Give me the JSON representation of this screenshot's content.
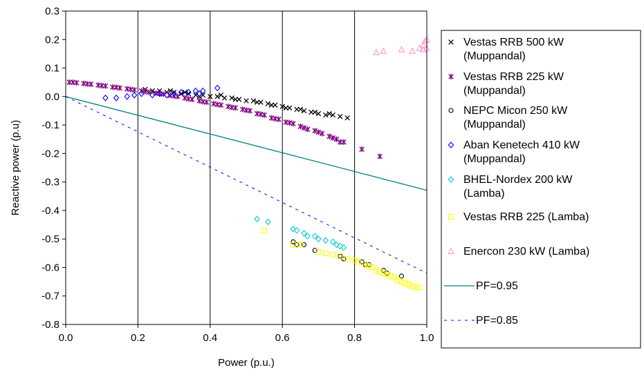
{
  "chart_data": {
    "type": "scatter",
    "xlabel": "Power (p.u.)",
    "ylabel": "Reactive power (p.u)",
    "xlim": [
      0,
      1.0
    ],
    "ylim": [
      -0.8,
      0.3
    ],
    "x_ticks": [
      "0.0",
      "0.2",
      "0.4",
      "0.6",
      "0.8",
      "1.0"
    ],
    "y_ticks": [
      "0.3",
      "0.2",
      "0.1",
      "0.0",
      "-0.1",
      "-0.2",
      "-0.3",
      "-0.4",
      "-0.5",
      "-0.6",
      "-0.7",
      "-0.8"
    ],
    "grid": "vertical",
    "legend_position": "right",
    "series": [
      {
        "name": [
          "Vestas RRB 500 kW",
          "(Muppandal)"
        ],
        "marker": "x",
        "color": "#000000",
        "points": [
          [
            0.22,
            0.025
          ],
          [
            0.24,
            0.02
          ],
          [
            0.26,
            0.02
          ],
          [
            0.28,
            0.015
          ],
          [
            0.3,
            0.015
          ],
          [
            0.32,
            0.01
          ],
          [
            0.34,
            0.01
          ],
          [
            0.36,
            0.005
          ],
          [
            0.38,
            0.005
          ],
          [
            0.4,
            0.0
          ],
          [
            0.42,
            0.0
          ],
          [
            0.44,
            -0.005
          ],
          [
            0.46,
            -0.005
          ],
          [
            0.48,
            -0.01
          ],
          [
            0.5,
            -0.015
          ],
          [
            0.52,
            -0.015
          ],
          [
            0.54,
            -0.02
          ],
          [
            0.56,
            -0.025
          ],
          [
            0.58,
            -0.03
          ],
          [
            0.6,
            -0.035
          ],
          [
            0.62,
            -0.04
          ],
          [
            0.64,
            -0.045
          ],
          [
            0.66,
            -0.05
          ],
          [
            0.68,
            -0.055
          ],
          [
            0.7,
            -0.06
          ],
          [
            0.72,
            -0.065
          ],
          [
            0.74,
            -0.065
          ],
          [
            0.76,
            -0.07
          ],
          [
            0.78,
            -0.075
          ],
          [
            0.29,
            0.02
          ],
          [
            0.33,
            0.015
          ],
          [
            0.37,
            0.0
          ],
          [
            0.43,
            0.005
          ],
          [
            0.47,
            -0.01
          ],
          [
            0.53,
            -0.02
          ],
          [
            0.57,
            -0.03
          ],
          [
            0.61,
            -0.04
          ],
          [
            0.65,
            -0.045
          ],
          [
            0.69,
            -0.055
          ],
          [
            0.73,
            -0.06
          ]
        ]
      },
      {
        "name": [
          "Vestas RRB 225 kW",
          "(Muppandal)"
        ],
        "marker": "asterisk",
        "color": "#800080",
        "points": [
          [
            0.01,
            0.05
          ],
          [
            0.03,
            0.048
          ],
          [
            0.05,
            0.046
          ],
          [
            0.07,
            0.043
          ],
          [
            0.09,
            0.04
          ],
          [
            0.11,
            0.037
          ],
          [
            0.13,
            0.033
          ],
          [
            0.15,
            0.03
          ],
          [
            0.17,
            0.027
          ],
          [
            0.19,
            0.023
          ],
          [
            0.21,
            0.02
          ],
          [
            0.23,
            0.015
          ],
          [
            0.25,
            0.012
          ],
          [
            0.27,
            0.008
          ],
          [
            0.29,
            0.004
          ],
          [
            0.31,
            0.0
          ],
          [
            0.33,
            -0.005
          ],
          [
            0.35,
            -0.01
          ],
          [
            0.37,
            -0.015
          ],
          [
            0.39,
            -0.02
          ],
          [
            0.41,
            -0.025
          ],
          [
            0.43,
            -0.03
          ],
          [
            0.45,
            -0.035
          ],
          [
            0.47,
            -0.04
          ],
          [
            0.49,
            -0.045
          ],
          [
            0.51,
            -0.05
          ],
          [
            0.53,
            -0.06
          ],
          [
            0.55,
            -0.065
          ],
          [
            0.57,
            -0.075
          ],
          [
            0.59,
            -0.08
          ],
          [
            0.61,
            -0.09
          ],
          [
            0.63,
            -0.095
          ],
          [
            0.65,
            -0.105
          ],
          [
            0.67,
            -0.115
          ],
          [
            0.69,
            -0.12
          ],
          [
            0.71,
            -0.13
          ],
          [
            0.73,
            -0.14
          ],
          [
            0.75,
            -0.15
          ],
          [
            0.77,
            -0.16
          ],
          [
            0.82,
            -0.185
          ],
          [
            0.87,
            -0.21
          ],
          [
            0.02,
            0.05
          ],
          [
            0.06,
            0.044
          ],
          [
            0.1,
            0.038
          ],
          [
            0.14,
            0.032
          ],
          [
            0.18,
            0.025
          ],
          [
            0.22,
            0.018
          ],
          [
            0.26,
            0.01
          ],
          [
            0.3,
            0.002
          ],
          [
            0.34,
            -0.008
          ],
          [
            0.38,
            -0.018
          ],
          [
            0.42,
            -0.028
          ],
          [
            0.46,
            -0.038
          ],
          [
            0.5,
            -0.048
          ],
          [
            0.54,
            -0.062
          ],
          [
            0.58,
            -0.078
          ],
          [
            0.62,
            -0.092
          ],
          [
            0.66,
            -0.11
          ],
          [
            0.7,
            -0.125
          ],
          [
            0.74,
            -0.145
          ],
          [
            0.76,
            -0.16
          ]
        ]
      },
      {
        "name": [
          "NEPC Micon 250 kW",
          "(Muppandal)"
        ],
        "marker": "circle",
        "color": "#000000",
        "points": [
          [
            0.63,
            -0.51
          ],
          [
            0.64,
            -0.52
          ],
          [
            0.66,
            -0.52
          ],
          [
            0.69,
            -0.54
          ],
          [
            0.76,
            -0.56
          ],
          [
            0.77,
            -0.57
          ],
          [
            0.82,
            -0.58
          ],
          [
            0.83,
            -0.59
          ],
          [
            0.84,
            -0.59
          ],
          [
            0.88,
            -0.61
          ],
          [
            0.89,
            -0.62
          ],
          [
            0.93,
            -0.63
          ]
        ]
      },
      {
        "name": [
          "Aban Kenetech 410 kW",
          "(Muppandal)"
        ],
        "marker": "diamond",
        "color": "#0000FF",
        "points": [
          [
            0.11,
            -0.005
          ],
          [
            0.14,
            -0.005
          ],
          [
            0.17,
            0.0
          ],
          [
            0.19,
            0.005
          ],
          [
            0.21,
            0.01
          ],
          [
            0.24,
            0.005
          ],
          [
            0.26,
            0.01
          ],
          [
            0.28,
            0.005
          ],
          [
            0.3,
            0.01
          ],
          [
            0.32,
            0.015
          ],
          [
            0.34,
            0.015
          ],
          [
            0.36,
            0.02
          ],
          [
            0.37,
            0.01
          ],
          [
            0.38,
            0.02
          ],
          [
            0.42,
            0.03
          ]
        ]
      },
      {
        "name": [
          "BHEL-Nordex 200 kW",
          "(Lamba)"
        ],
        "marker": "diamond",
        "color": "#00CCCC",
        "points": [
          [
            0.53,
            -0.43
          ],
          [
            0.56,
            -0.44
          ],
          [
            0.63,
            -0.465
          ],
          [
            0.64,
            -0.47
          ],
          [
            0.66,
            -0.48
          ],
          [
            0.67,
            -0.49
          ],
          [
            0.69,
            -0.49
          ],
          [
            0.7,
            -0.5
          ],
          [
            0.72,
            -0.505
          ],
          [
            0.74,
            -0.51
          ],
          [
            0.75,
            -0.52
          ],
          [
            0.76,
            -0.525
          ],
          [
            0.77,
            -0.53
          ]
        ]
      },
      {
        "name": [
          "Vestas RRB 225 (Lamba)"
        ],
        "marker": "square",
        "color": "#FFFF00",
        "points": [
          [
            0.55,
            -0.47
          ],
          [
            0.63,
            -0.52
          ],
          [
            0.65,
            -0.52
          ],
          [
            0.7,
            -0.545
          ],
          [
            0.72,
            -0.55
          ],
          [
            0.74,
            -0.555
          ],
          [
            0.76,
            -0.56
          ],
          [
            0.78,
            -0.57
          ],
          [
            0.8,
            -0.575
          ],
          [
            0.81,
            -0.58
          ],
          [
            0.83,
            -0.59
          ],
          [
            0.84,
            -0.595
          ],
          [
            0.85,
            -0.6
          ],
          [
            0.86,
            -0.61
          ],
          [
            0.87,
            -0.615
          ],
          [
            0.88,
            -0.62
          ],
          [
            0.89,
            -0.625
          ],
          [
            0.9,
            -0.63
          ],
          [
            0.91,
            -0.635
          ],
          [
            0.92,
            -0.645
          ],
          [
            0.93,
            -0.65
          ],
          [
            0.94,
            -0.655
          ],
          [
            0.95,
            -0.66
          ],
          [
            0.96,
            -0.665
          ],
          [
            0.97,
            -0.67
          ],
          [
            0.98,
            -0.67
          ]
        ]
      },
      {
        "name": [
          "Enercon 230 kW (Lamba)"
        ],
        "marker": "triangle",
        "color": "#FF99CC",
        "points": [
          [
            0.86,
            0.155
          ],
          [
            0.88,
            0.16
          ],
          [
            0.93,
            0.165
          ],
          [
            0.96,
            0.16
          ],
          [
            0.98,
            0.17
          ],
          [
            0.99,
            0.18
          ],
          [
            0.995,
            0.195
          ],
          [
            1.0,
            0.2
          ],
          [
            0.99,
            0.165
          ],
          [
            1.0,
            0.17
          ]
        ]
      },
      {
        "name": [
          "PF=0.95"
        ],
        "marker": "line",
        "color": "#008080",
        "dash": "solid",
        "points": [
          [
            0,
            0
          ],
          [
            1.0,
            -0.329
          ]
        ]
      },
      {
        "name": [
          "PF=0.85"
        ],
        "marker": "line",
        "color": "#0000FF",
        "dash": "dashed",
        "points": [
          [
            0,
            0
          ],
          [
            1.0,
            -0.62
          ]
        ]
      }
    ]
  }
}
